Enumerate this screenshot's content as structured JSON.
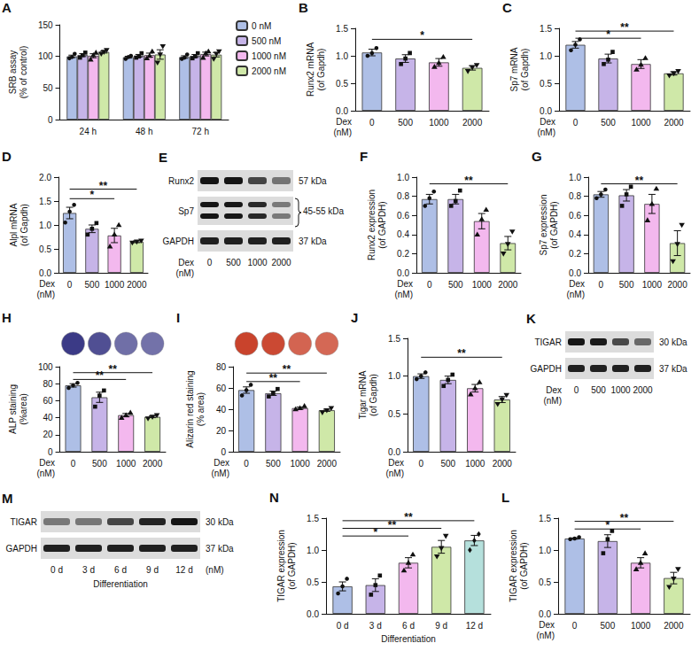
{
  "chart_data": [
    {
      "panel": "A",
      "type": "bar",
      "categories": [
        "24 h",
        "48 h",
        "72 h"
      ],
      "y_label": "SRB assay (% of control)",
      "ylim": [
        0,
        150
      ],
      "yticks": [
        0,
        50,
        100,
        150
      ],
      "legend": "right",
      "series": [
        {
          "name": "0 nM",
          "color": "#aebfe6",
          "values": [
            100,
            98.7,
            99
          ],
          "errors": [
            2,
            1.5,
            2
          ],
          "points": [
            [
              97,
              99,
              104
            ],
            [
              96,
              99,
              101
            ],
            [
              96,
              98,
              103
            ]
          ]
        },
        {
          "name": "500 nM",
          "color": "#c6b4e8",
          "values": [
            102,
            101,
            100.7
          ],
          "errors": [
            2.3,
            2.1,
            2.3
          ],
          "points": [
            [
              98,
              102,
              106
            ],
            [
              98,
              100,
              105
            ],
            [
              97,
              100,
              105
            ]
          ]
        },
        {
          "name": "1000 nM",
          "color": "#f3b8ee",
          "values": [
            101,
            102,
            103.7
          ],
          "errors": [
            3.2,
            3.2,
            3
          ],
          "points": [
            [
              95,
              102,
              106
            ],
            [
              97,
              101,
              108
            ],
            [
              98,
              105,
              108
            ]
          ]
        },
        {
          "name": "2000 nM",
          "color": "#cfe8a8",
          "values": [
            107,
            103,
            102.7
          ],
          "errors": [
            1.7,
            7.5,
            3.5
          ],
          "points": [
            [
              104,
              107,
              110
            ],
            [
              90,
              103,
              116
            ],
            [
              96,
              104,
              108
            ]
          ]
        }
      ]
    },
    {
      "panel": "B",
      "type": "bar",
      "categories": [
        "0",
        "500",
        "1000",
        "2000"
      ],
      "x_label": "Dex (nM)",
      "y_label": "Runx2 mRNA (of Gapdh)",
      "ylim": [
        0,
        1.5
      ],
      "yticks": [
        {
          "value": 0,
          "label": "0.0"
        },
        0.5,
        {
          "value": 1,
          "label": "1.0"
        },
        1.5
      ],
      "colors": [
        "#aebfe6",
        "#c6b4e8",
        "#f3b8ee",
        "#cfe8a8"
      ],
      "values": [
        1.06,
        0.95,
        0.88,
        0.78
      ],
      "errors": [
        0.06,
        0.07,
        0.07,
        0.04
      ],
      "points": [
        [
          1.0,
          1.05,
          1.14
        ],
        [
          0.85,
          0.95,
          1.05
        ],
        [
          0.8,
          0.87,
          0.98
        ],
        [
          0.72,
          0.79,
          0.83
        ]
      ],
      "significance": [
        {
          "from": 0,
          "to": 3,
          "y": 1.3,
          "label": "*"
        }
      ]
    },
    {
      "panel": "C",
      "type": "bar",
      "categories": [
        "0",
        "500",
        "1000",
        "2000"
      ],
      "x_label": "Dex (nM)",
      "y_label": "Sp7 mRNA (of Gapdh)",
      "ylim": [
        0,
        1.5
      ],
      "yticks": [
        {
          "value": 0,
          "label": "0.0"
        },
        0.5,
        {
          "value": 1,
          "label": "1.0"
        },
        1.5
      ],
      "colors": [
        "#aebfe6",
        "#c6b4e8",
        "#f3b8ee",
        "#cfe8a8"
      ],
      "values": [
        1.2,
        0.95,
        0.85,
        0.68
      ],
      "errors": [
        0.06,
        0.08,
        0.08,
        0.03
      ],
      "points": [
        [
          1.1,
          1.2,
          1.3
        ],
        [
          0.85,
          0.93,
          1.07
        ],
        [
          0.75,
          0.84,
          0.96
        ],
        [
          0.64,
          0.68,
          0.72
        ]
      ],
      "significance": [
        {
          "from": 0,
          "to": 2,
          "y": 1.32,
          "label": "*"
        },
        {
          "from": 0,
          "to": 3,
          "y": 1.45,
          "label": "**"
        }
      ]
    },
    {
      "panel": "D",
      "type": "bar",
      "categories": [
        "0",
        "500",
        "1000",
        "2000"
      ],
      "x_label": "Dex (nM)",
      "y_label": "Alpl mRNA (of Gapdh)",
      "ylim": [
        0,
        2
      ],
      "yticks": [
        {
          "value": 0,
          "label": "0.0"
        },
        0.5,
        {
          "value": 1,
          "label": "1.0"
        },
        1.5,
        {
          "value": 2,
          "label": "2.0"
        }
      ],
      "colors": [
        "#aebfe6",
        "#c6b4e8",
        "#f3b8ee",
        "#cfe8a8"
      ],
      "values": [
        1.25,
        0.92,
        0.78,
        0.65
      ],
      "errors": [
        0.12,
        0.08,
        0.15,
        0.02
      ],
      "points": [
        [
          1.05,
          1.28,
          1.42
        ],
        [
          0.8,
          0.92,
          1.04
        ],
        [
          0.55,
          0.8,
          1.0
        ],
        [
          0.63,
          0.65,
          0.67
        ]
      ],
      "significance": [
        {
          "from": 0,
          "to": 2,
          "y": 1.55,
          "label": "*"
        },
        {
          "from": 0,
          "to": 3,
          "y": 1.75,
          "label": "**"
        }
      ]
    },
    {
      "panel": "F",
      "type": "bar",
      "categories": [
        "0",
        "500",
        "1000",
        "2000"
      ],
      "x_label": "Dex (nM)",
      "y_label": "Runx2 expression (of GAPDH)",
      "ylim": [
        0,
        1
      ],
      "yticks": [
        {
          "value": 0,
          "label": "0.0"
        },
        0.2,
        0.4,
        0.6,
        0.8,
        {
          "value": 1,
          "label": "1.0"
        }
      ],
      "colors": [
        "#aebfe6",
        "#c6b4e8",
        "#f3b8ee",
        "#cfe8a8"
      ],
      "values": [
        0.77,
        0.77,
        0.54,
        0.31
      ],
      "errors": [
        0.05,
        0.05,
        0.08,
        0.07
      ],
      "points": [
        [
          0.7,
          0.78,
          0.85
        ],
        [
          0.7,
          0.75,
          0.86
        ],
        [
          0.4,
          0.56,
          0.66
        ],
        [
          0.2,
          0.3,
          0.43
        ]
      ],
      "significance": [
        {
          "from": 0,
          "to": 3,
          "y": 0.93,
          "label": "**"
        }
      ]
    },
    {
      "panel": "G",
      "type": "bar",
      "categories": [
        "0",
        "500",
        "1000",
        "2000"
      ],
      "x_label": "Dex (nM)",
      "y_label": "Sp7 expression (of GAPDH)",
      "ylim": [
        0,
        1
      ],
      "yticks": [
        {
          "value": 0,
          "label": "0.0"
        },
        0.2,
        0.4,
        0.6,
        0.8,
        {
          "value": 1,
          "label": "1.0"
        }
      ],
      "colors": [
        "#aebfe6",
        "#c6b4e8",
        "#f3b8ee",
        "#cfe8a8"
      ],
      "values": [
        0.82,
        0.81,
        0.72,
        0.31
      ],
      "errors": [
        0.03,
        0.06,
        0.1,
        0.13
      ],
      "points": [
        [
          0.78,
          0.82,
          0.87
        ],
        [
          0.7,
          0.82,
          0.9
        ],
        [
          0.55,
          0.72,
          0.88
        ],
        [
          0.12,
          0.3,
          0.5
        ]
      ],
      "significance": [
        {
          "from": 0,
          "to": 3,
          "y": 0.93,
          "label": "**"
        }
      ]
    },
    {
      "panel": "H",
      "type": "bar",
      "categories": [
        "0",
        "500",
        "1000",
        "2000"
      ],
      "x_label": "Dex (nM)",
      "y_label": "ALP staining (%area)",
      "ylim": [
        0,
        100
      ],
      "yticks": [
        0,
        20,
        40,
        60,
        80,
        100
      ],
      "colors": [
        "#aebfe6",
        "#c6b4e8",
        "#f3b8ee",
        "#cfe8a8"
      ],
      "values": [
        78,
        64,
        43,
        41
      ],
      "errors": [
        2,
        6,
        2,
        1
      ],
      "points": [
        [
          75,
          78,
          81
        ],
        [
          53,
          66,
          72
        ],
        [
          40,
          43,
          46
        ],
        [
          39,
          41,
          43
        ]
      ],
      "significance": [
        {
          "from": 0,
          "to": 2,
          "y": 85,
          "label": "**"
        },
        {
          "from": 0,
          "to": 3,
          "y": 93,
          "label": "**"
        }
      ]
    },
    {
      "panel": "I",
      "type": "bar",
      "categories": [
        "0",
        "500",
        "1000",
        "2000"
      ],
      "x_label": "Dex (nM)",
      "y_label": "Alizarin red staining (% area)",
      "ylim": [
        0,
        80
      ],
      "yticks": [
        0,
        20,
        40,
        60,
        80
      ],
      "colors": [
        "#aebfe6",
        "#c6b4e8",
        "#f3b8ee",
        "#cfe8a8"
      ],
      "values": [
        58,
        55,
        41,
        39
      ],
      "errors": [
        3,
        2,
        1,
        1
      ],
      "points": [
        [
          53,
          58,
          63
        ],
        [
          52,
          55,
          59
        ],
        [
          40,
          41,
          43
        ],
        [
          37,
          39,
          41
        ]
      ],
      "significance": [
        {
          "from": 0,
          "to": 2,
          "y": 66,
          "label": "**"
        },
        {
          "from": 0,
          "to": 3,
          "y": 74,
          "label": "**"
        }
      ]
    },
    {
      "panel": "J",
      "type": "bar",
      "categories": [
        "0",
        "500",
        "1000",
        "2000"
      ],
      "x_label": "Dex (nM)",
      "y_label": "Tigar mRNA (of Gapdh)",
      "ylim": [
        0,
        1.5
      ],
      "yticks": [
        {
          "value": 0,
          "label": "0.0"
        },
        0.5,
        {
          "value": 1,
          "label": "1.0"
        },
        1.5
      ],
      "colors": [
        "#aebfe6",
        "#c6b4e8",
        "#f3b8ee",
        "#cfe8a8"
      ],
      "values": [
        1.0,
        0.95,
        0.84,
        0.69
      ],
      "errors": [
        0.03,
        0.05,
        0.05,
        0.04
      ],
      "points": [
        [
          0.96,
          1.0,
          1.05
        ],
        [
          0.87,
          0.95,
          1.02
        ],
        [
          0.76,
          0.84,
          0.92
        ],
        [
          0.63,
          0.69,
          0.75
        ]
      ],
      "significance": [
        {
          "from": 0,
          "to": 3,
          "y": 1.25,
          "label": "**"
        }
      ]
    },
    {
      "panel": "L",
      "type": "bar",
      "categories": [
        "0",
        "500",
        "1000",
        "2000"
      ],
      "x_label": "Dex (nM)",
      "y_label": "TIGAR expression (of GAPDH)",
      "ylim": [
        0,
        1.5
      ],
      "yticks": [
        {
          "value": 0,
          "label": "0.0"
        },
        0.5,
        {
          "value": 1,
          "label": "1.0"
        },
        1.5
      ],
      "colors": [
        "#aebfe6",
        "#c6b4e8",
        "#f3b8ee",
        "#cfe8a8"
      ],
      "values": [
        1.18,
        1.14,
        0.8,
        0.56
      ],
      "errors": [
        0.01,
        0.1,
        0.08,
        0.09
      ],
      "points": [
        [
          1.17,
          1.18,
          1.2
        ],
        [
          0.95,
          1.17,
          1.3
        ],
        [
          0.7,
          0.8,
          0.95
        ],
        [
          0.42,
          0.55,
          0.7
        ]
      ],
      "significance": [
        {
          "from": 0,
          "to": 2,
          "y": 1.33,
          "label": "*"
        },
        {
          "from": 0,
          "to": 3,
          "y": 1.45,
          "label": "**"
        }
      ]
    },
    {
      "panel": "N",
      "type": "bar",
      "categories": [
        "0 d",
        "3 d",
        "6 d",
        "9 d",
        "12 d"
      ],
      "x_label": "Differentiation",
      "y_label": "TIGAR expression (of GAPDH)",
      "ylim": [
        0,
        1.5
      ],
      "yticks": [
        {
          "value": 0,
          "label": "0.0"
        },
        0.5,
        {
          "value": 1,
          "label": "1.0"
        },
        1.5
      ],
      "colors": [
        "#aebfe6",
        "#c6b4e8",
        "#f3b8ee",
        "#cfe8a8",
        "#b5e0dc"
      ],
      "values": [
        0.43,
        0.45,
        0.8,
        1.05,
        1.15
      ],
      "errors": [
        0.07,
        0.1,
        0.08,
        0.1,
        0.08
      ],
      "points": [
        [
          0.32,
          0.43,
          0.55
        ],
        [
          0.3,
          0.45,
          0.6
        ],
        [
          0.68,
          0.8,
          0.93
        ],
        [
          0.9,
          1.03,
          1.22
        ],
        [
          1.0,
          1.15,
          1.25
        ]
      ],
      "significance": [
        {
          "from": 0,
          "to": 2,
          "y": 1.22,
          "label": "*"
        },
        {
          "from": 0,
          "to": 3,
          "y": 1.34,
          "label": "**"
        },
        {
          "from": 0,
          "to": 4,
          "y": 1.46,
          "label": "**"
        }
      ]
    }
  ],
  "blots": [
    {
      "panel": "E",
      "rows": [
        {
          "label": "Runx2",
          "size": "57 kDa"
        },
        {
          "label": "Sp7",
          "size": "45-55 kDa"
        },
        {
          "label": "GAPDH",
          "size": "37 kDa"
        }
      ],
      "lanes": [
        "0",
        "500",
        "1000",
        "2000"
      ],
      "lane_label": "Dex (nM)"
    },
    {
      "panel": "K",
      "rows": [
        {
          "label": "TIGAR",
          "size": "30 kDa"
        },
        {
          "label": "GAPDH",
          "size": "37 kDa"
        }
      ],
      "lanes": [
        "0",
        "500",
        "1000",
        "2000"
      ],
      "lane_label": "Dex (nM)"
    },
    {
      "panel": "M",
      "rows": [
        {
          "label": "TIGAR",
          "size": "30 kDa"
        },
        {
          "label": "GAPDH",
          "size": "37 kDa"
        }
      ],
      "lanes": [
        "0 d",
        "3 d",
        "6 d",
        "9 d",
        "12 d"
      ],
      "lane_label": "Differentiation",
      "extra_label": "(nM)"
    }
  ]
}
